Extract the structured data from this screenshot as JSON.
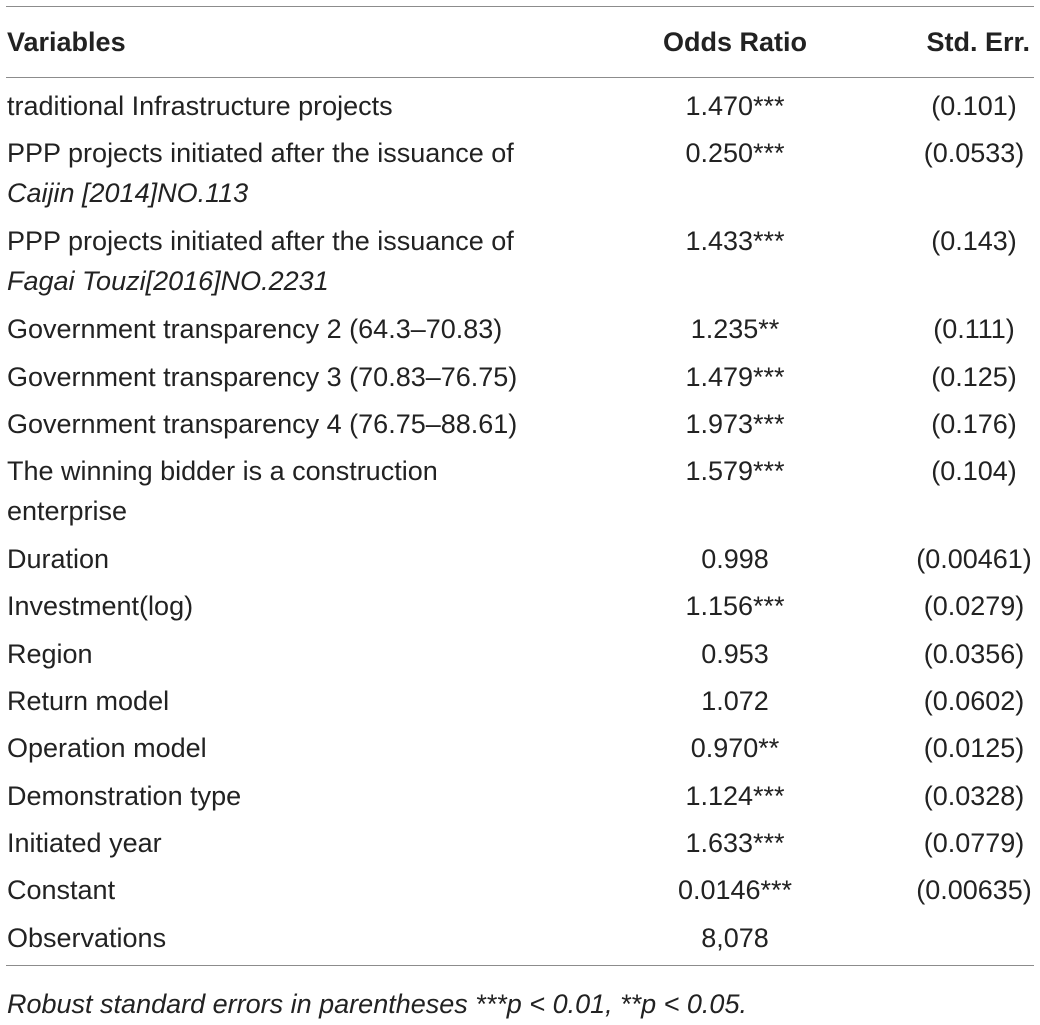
{
  "table": {
    "headers": {
      "variables": "Variables",
      "odds_ratio": "Odds Ratio",
      "std_err": "Std. Err."
    },
    "rows": [
      {
        "var": "traditional Infrastructure projects",
        "var_italic": "",
        "or": "1.470***",
        "se": "(0.101)"
      },
      {
        "var": "PPP projects initiated after the issuance of",
        "var_italic": "Caijin [2014]NO.113",
        "or": "0.250***",
        "se": "(0.0533)"
      },
      {
        "var": "PPP projects initiated after the issuance of",
        "var_italic": "Fagai Touzi[2016]NO.2231",
        "or": "1.433***",
        "se": "(0.143)"
      },
      {
        "var": "Government transparency 2 (64.3–70.83)",
        "var_italic": "",
        "or": "1.235**",
        "se": "(0.111)"
      },
      {
        "var": "Government transparency 3 (70.83–76.75)",
        "var_italic": "",
        "or": "1.479***",
        "se": "(0.125)"
      },
      {
        "var": "Government transparency 4 (76.75–88.61)",
        "var_italic": "",
        "or": "1.973***",
        "se": "(0.176)"
      },
      {
        "var": "The winning bidder is a construction",
        "var_line2": "enterprise",
        "var_italic": "",
        "or": "1.579***",
        "se": "(0.104)"
      },
      {
        "var": "Duration",
        "var_italic": "",
        "or": "0.998",
        "se": "(0.00461)"
      },
      {
        "var": "Investment(log)",
        "var_italic": "",
        "or": "1.156***",
        "se": "(0.0279)"
      },
      {
        "var": "Region",
        "var_italic": "",
        "or": "0.953",
        "se": "(0.0356)"
      },
      {
        "var": "Return model",
        "var_italic": "",
        "or": "1.072",
        "se": "(0.0602)"
      },
      {
        "var": "Operation model",
        "var_italic": "",
        "or": "0.970**",
        "se": "(0.0125)"
      },
      {
        "var": "Demonstration type",
        "var_italic": "",
        "or": "1.124***",
        "se": "(0.0328)"
      },
      {
        "var": "Initiated year",
        "var_italic": "",
        "or": "1.633***",
        "se": "(0.0779)"
      },
      {
        "var": "Constant",
        "var_italic": "",
        "or": "0.0146***",
        "se": "(0.00635)"
      },
      {
        "var": "Observations",
        "var_italic": "",
        "or": "8,078",
        "se": ""
      }
    ]
  },
  "footnote": "Robust standard errors in parentheses ***p < 0.01, **p < 0.05."
}
